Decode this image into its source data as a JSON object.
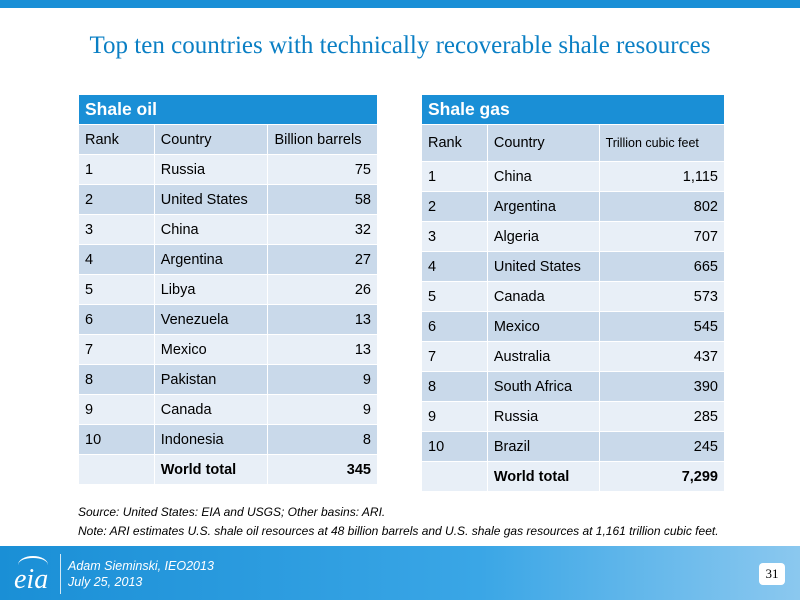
{
  "title": "Top ten countries with technically recoverable shale resources",
  "oil_table": {
    "heading": "Shale oil",
    "columns": [
      "Rank",
      "Country",
      "Billion barrels"
    ],
    "rows": [
      {
        "rank": "1",
        "country": "Russia",
        "value": "75"
      },
      {
        "rank": "2",
        "country": "United States",
        "value": "58"
      },
      {
        "rank": "3",
        "country": "China",
        "value": "32"
      },
      {
        "rank": "4",
        "country": "Argentina",
        "value": "27"
      },
      {
        "rank": "5",
        "country": "Libya",
        "value": "26"
      },
      {
        "rank": "6",
        "country": "Venezuela",
        "value": "13"
      },
      {
        "rank": "7",
        "country": "Mexico",
        "value": "13"
      },
      {
        "rank": "8",
        "country": "Pakistan",
        "value": "9"
      },
      {
        "rank": "9",
        "country": "Canada",
        "value": "9"
      },
      {
        "rank": "10",
        "country": "Indonesia",
        "value": "8"
      }
    ],
    "total_label": "World total",
    "total_value": "345"
  },
  "gas_table": {
    "heading": "Shale gas",
    "columns": [
      "Rank",
      "Country",
      "Trillion cubic feet"
    ],
    "rows": [
      {
        "rank": "1",
        "country": "China",
        "value": "1,115"
      },
      {
        "rank": "2",
        "country": "Argentina",
        "value": "802"
      },
      {
        "rank": "3",
        "country": "Algeria",
        "value": "707"
      },
      {
        "rank": "4",
        "country": "United States",
        "value": "665"
      },
      {
        "rank": "5",
        "country": "Canada",
        "value": "573"
      },
      {
        "rank": "6",
        "country": "Mexico",
        "value": "545"
      },
      {
        "rank": "7",
        "country": "Australia",
        "value": "437"
      },
      {
        "rank": "8",
        "country": "South Africa",
        "value": "390"
      },
      {
        "rank": "9",
        "country": "Russia",
        "value": "285"
      },
      {
        "rank": "10",
        "country": "Brazil",
        "value": "245"
      }
    ],
    "total_label": "World total",
    "total_value": "7,299"
  },
  "source_line": "Source:  United States:  EIA and USGS; Other basins: ARI.",
  "note_line": "Note: ARI estimates U.S. shale oil resources at 48 billion barrels and U.S. shale gas resources at 1,161 trillion cubic feet.",
  "footer": {
    "logo_text": "eia",
    "logo_icon": "eia-logo-icon",
    "author": "Adam Sieminski, IEO2013",
    "date": "July 25, 2013",
    "page_number": "31"
  },
  "colors": {
    "accent": "#1a8fd6",
    "title": "#0a7fc4",
    "row_dark": "#c9d9ea",
    "row_light": "#e8eff7"
  }
}
